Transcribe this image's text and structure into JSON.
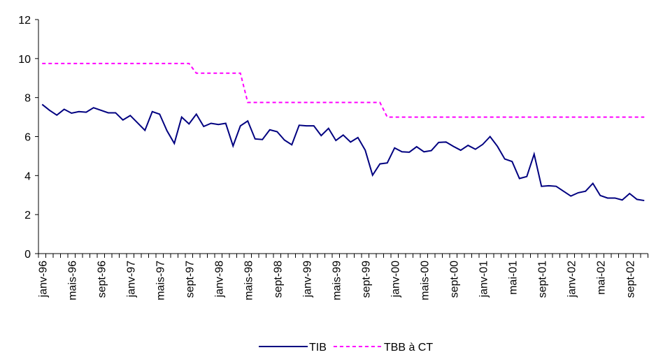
{
  "chart_data": {
    "type": "line",
    "categories": [
      "janv-96",
      null,
      null,
      null,
      "mais-96",
      null,
      null,
      null,
      "sept-96",
      null,
      null,
      null,
      "janv-97",
      null,
      null,
      null,
      "mais-97",
      null,
      null,
      null,
      "sept-97",
      null,
      null,
      null,
      "janv-98",
      null,
      null,
      null,
      "mais-98",
      null,
      null,
      null,
      "sept-98",
      null,
      null,
      null,
      "janv-99",
      null,
      null,
      null,
      "mais-99",
      null,
      null,
      null,
      "sept-99",
      null,
      null,
      null,
      "janv-00",
      null,
      null,
      null,
      "mais-00",
      null,
      null,
      null,
      "sept-00",
      null,
      null,
      null,
      "janv-01",
      null,
      null,
      null,
      "mai-01",
      null,
      null,
      null,
      "sept-01",
      null,
      null,
      null,
      "janv-02",
      null,
      null,
      null,
      "mai-02",
      null,
      null,
      null,
      "sept-02",
      null,
      null
    ],
    "series": [
      {
        "name": "TIB",
        "color": "#000080",
        "dash": false,
        "values": [
          7.65,
          7.35,
          7.1,
          7.4,
          7.2,
          7.28,
          7.25,
          7.48,
          7.35,
          7.22,
          7.22,
          6.85,
          7.08,
          6.7,
          6.32,
          7.28,
          7.15,
          6.3,
          5.65,
          7.0,
          6.65,
          7.15,
          6.52,
          6.68,
          6.62,
          6.68,
          5.52,
          6.55,
          6.8,
          5.88,
          5.85,
          6.35,
          6.25,
          5.82,
          5.58,
          6.58,
          6.55,
          6.55,
          6.05,
          6.42,
          5.8,
          6.08,
          5.72,
          5.95,
          5.3,
          4.02,
          4.6,
          4.65,
          5.42,
          5.22,
          5.2,
          5.48,
          5.22,
          5.28,
          5.7,
          5.72,
          5.5,
          5.3,
          5.55,
          5.35,
          5.6,
          6.0,
          5.5,
          4.85,
          4.72,
          3.85,
          3.95,
          5.1,
          3.45,
          3.48,
          3.45,
          3.2,
          2.95,
          3.12,
          3.2,
          3.6,
          2.98,
          2.85,
          2.85,
          2.75,
          3.08,
          2.78,
          2.72
        ]
      },
      {
        "name": "TBB à CT",
        "color": "#ff00ff",
        "dash": true,
        "values": [
          9.75,
          9.75,
          9.75,
          9.75,
          9.75,
          9.75,
          9.75,
          9.75,
          9.75,
          9.75,
          9.75,
          9.75,
          9.75,
          9.75,
          9.75,
          9.75,
          9.75,
          9.75,
          9.75,
          9.75,
          9.75,
          9.25,
          9.25,
          9.25,
          9.25,
          9.25,
          9.25,
          9.25,
          7.75,
          7.75,
          7.75,
          7.75,
          7.75,
          7.75,
          7.75,
          7.75,
          7.75,
          7.75,
          7.75,
          7.75,
          7.75,
          7.75,
          7.75,
          7.75,
          7.75,
          7.75,
          7.75,
          7.0,
          7.0,
          7.0,
          7.0,
          7.0,
          7.0,
          7.0,
          7.0,
          7.0,
          7.0,
          7.0,
          7.0,
          7.0,
          7.0,
          7.0,
          7.0,
          7.0,
          7.0,
          7.0,
          7.0,
          7.0,
          7.0,
          7.0,
          7.0,
          7.0,
          7.0,
          7.0,
          7.0,
          7.0,
          7.0,
          7.0,
          7.0,
          7.0,
          7.0,
          7.0,
          7.0
        ]
      }
    ],
    "ylim": [
      0,
      12
    ],
    "yticks": [
      0,
      2,
      4,
      6,
      8,
      10,
      12
    ],
    "grid": false,
    "legend": "bottom"
  }
}
